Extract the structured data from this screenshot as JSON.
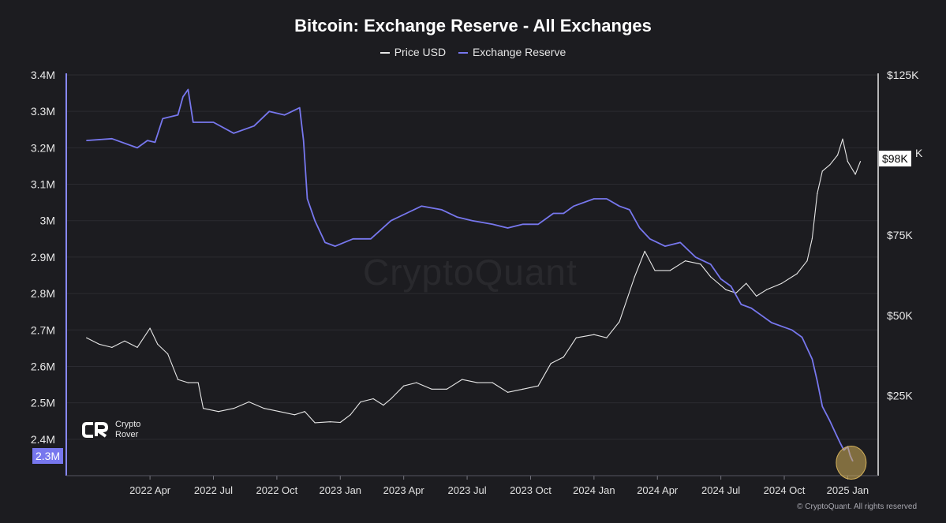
{
  "chart_data": {
    "type": "line",
    "title": "Bitcoin: Exchange Reserve - All Exchanges",
    "legend_position": "top-center",
    "grid": true,
    "x_ticks": [
      "2022 Apr",
      "2022 Jul",
      "2022 Oct",
      "2023 Jan",
      "2023 Apr",
      "2023 Jul",
      "2023 Oct",
      "2024 Jan",
      "2024 Apr",
      "2024 Jul",
      "2024 Oct",
      "2025 Jan"
    ],
    "left_axis": {
      "ticks": [
        "3.4M",
        "3.3M",
        "3.2M",
        "3.1M",
        "3M",
        "2.9M",
        "2.8M",
        "2.7M",
        "2.6M",
        "2.5M",
        "2.4M"
      ],
      "range": [
        2.3,
        3.4
      ]
    },
    "right_axis": {
      "ticks": [
        "$125K",
        "$75K",
        "$50K",
        "$25K"
      ],
      "range": [
        0,
        125
      ]
    },
    "series": [
      {
        "name": "Price USD",
        "axis": "right",
        "color": "#e6e6e6",
        "unit": "K USD",
        "points": [
          [
            2022.0,
            43
          ],
          [
            2022.05,
            41
          ],
          [
            2022.1,
            40
          ],
          [
            2022.15,
            42
          ],
          [
            2022.2,
            40
          ],
          [
            2022.25,
            46
          ],
          [
            2022.28,
            41
          ],
          [
            2022.32,
            38
          ],
          [
            2022.36,
            30
          ],
          [
            2022.4,
            29
          ],
          [
            2022.44,
            29
          ],
          [
            2022.46,
            21
          ],
          [
            2022.52,
            20
          ],
          [
            2022.58,
            21
          ],
          [
            2022.64,
            23
          ],
          [
            2022.7,
            21
          ],
          [
            2022.76,
            20
          ],
          [
            2022.82,
            19
          ],
          [
            2022.86,
            20
          ],
          [
            2022.9,
            16.5
          ],
          [
            2022.96,
            16.8
          ],
          [
            2023.0,
            16.6
          ],
          [
            2023.04,
            19
          ],
          [
            2023.08,
            23
          ],
          [
            2023.13,
            24
          ],
          [
            2023.17,
            22
          ],
          [
            2023.2,
            24
          ],
          [
            2023.25,
            28
          ],
          [
            2023.3,
            29
          ],
          [
            2023.36,
            27
          ],
          [
            2023.42,
            27
          ],
          [
            2023.48,
            30
          ],
          [
            2023.54,
            29
          ],
          [
            2023.6,
            29
          ],
          [
            2023.66,
            26
          ],
          [
            2023.72,
            27
          ],
          [
            2023.78,
            28
          ],
          [
            2023.83,
            35
          ],
          [
            2023.88,
            37
          ],
          [
            2023.93,
            43
          ],
          [
            2024.0,
            44
          ],
          [
            2024.05,
            43
          ],
          [
            2024.1,
            48
          ],
          [
            2024.16,
            62
          ],
          [
            2024.2,
            70
          ],
          [
            2024.24,
            64
          ],
          [
            2024.3,
            64
          ],
          [
            2024.36,
            67
          ],
          [
            2024.42,
            66
          ],
          [
            2024.46,
            62
          ],
          [
            2024.52,
            58
          ],
          [
            2024.56,
            57
          ],
          [
            2024.6,
            60
          ],
          [
            2024.64,
            56
          ],
          [
            2024.68,
            58
          ],
          [
            2024.74,
            60
          ],
          [
            2024.8,
            63
          ],
          [
            2024.84,
            67
          ],
          [
            2024.86,
            74
          ],
          [
            2024.88,
            88
          ],
          [
            2024.9,
            95
          ],
          [
            2024.93,
            97
          ],
          [
            2024.96,
            100
          ],
          [
            2024.98,
            105
          ],
          [
            2025.0,
            98
          ],
          [
            2025.03,
            94
          ],
          [
            2025.05,
            98
          ]
        ]
      },
      {
        "name": "Exchange Reserve",
        "axis": "left",
        "color": "#7777ee",
        "unit": "M BTC",
        "points": [
          [
            2022.0,
            3.22
          ],
          [
            2022.1,
            3.225
          ],
          [
            2022.2,
            3.2
          ],
          [
            2022.24,
            3.22
          ],
          [
            2022.27,
            3.215
          ],
          [
            2022.3,
            3.28
          ],
          [
            2022.36,
            3.29
          ],
          [
            2022.38,
            3.34
          ],
          [
            2022.4,
            3.36
          ],
          [
            2022.42,
            3.27
          ],
          [
            2022.5,
            3.27
          ],
          [
            2022.58,
            3.24
          ],
          [
            2022.66,
            3.26
          ],
          [
            2022.72,
            3.3
          ],
          [
            2022.78,
            3.29
          ],
          [
            2022.84,
            3.31
          ],
          [
            2022.855,
            3.22
          ],
          [
            2022.87,
            3.06
          ],
          [
            2022.9,
            3.0
          ],
          [
            2022.94,
            2.94
          ],
          [
            2022.98,
            2.93
          ],
          [
            2023.05,
            2.95
          ],
          [
            2023.12,
            2.95
          ],
          [
            2023.2,
            3.0
          ],
          [
            2023.26,
            3.02
          ],
          [
            2023.32,
            3.04
          ],
          [
            2023.4,
            3.03
          ],
          [
            2023.46,
            3.01
          ],
          [
            2023.52,
            3.0
          ],
          [
            2023.6,
            2.99
          ],
          [
            2023.66,
            2.98
          ],
          [
            2023.72,
            2.99
          ],
          [
            2023.78,
            2.99
          ],
          [
            2023.84,
            3.02
          ],
          [
            2023.88,
            3.02
          ],
          [
            2023.92,
            3.04
          ],
          [
            2024.0,
            3.06
          ],
          [
            2024.05,
            3.06
          ],
          [
            2024.1,
            3.04
          ],
          [
            2024.14,
            3.03
          ],
          [
            2024.18,
            2.98
          ],
          [
            2024.22,
            2.95
          ],
          [
            2024.28,
            2.93
          ],
          [
            2024.34,
            2.94
          ],
          [
            2024.4,
            2.9
          ],
          [
            2024.46,
            2.88
          ],
          [
            2024.5,
            2.84
          ],
          [
            2024.54,
            2.82
          ],
          [
            2024.58,
            2.77
          ],
          [
            2024.62,
            2.76
          ],
          [
            2024.66,
            2.74
          ],
          [
            2024.7,
            2.72
          ],
          [
            2024.74,
            2.71
          ],
          [
            2024.78,
            2.7
          ],
          [
            2024.82,
            2.68
          ],
          [
            2024.86,
            2.62
          ],
          [
            2024.88,
            2.56
          ],
          [
            2024.9,
            2.49
          ],
          [
            2024.93,
            2.45
          ],
          [
            2024.95,
            2.42
          ],
          [
            2024.97,
            2.39
          ],
          [
            2024.985,
            2.37
          ],
          [
            2025.0,
            2.38
          ],
          [
            2025.01,
            2.355
          ],
          [
            2025.02,
            2.34
          ]
        ]
      }
    ],
    "last_value_tags": {
      "left": "2.3M",
      "right": "$98K"
    },
    "highlight": {
      "x": 2025.02,
      "value": 2.34,
      "color": "#d4b15a"
    }
  },
  "legend": {
    "price": "Price USD",
    "reserve": "Exchange Reserve"
  },
  "overlays": {
    "watermark": "CryptoQuant",
    "brand_line1": "Crypto",
    "brand_line2": "Rover",
    "copyright": "© CryptoQuant. All rights reserved",
    "tag_right_suffix": "K"
  },
  "colors": {
    "background": "#1c1c20",
    "grid": "#2b2b31",
    "axis": "#8888ff",
    "text": "#ffffff"
  }
}
